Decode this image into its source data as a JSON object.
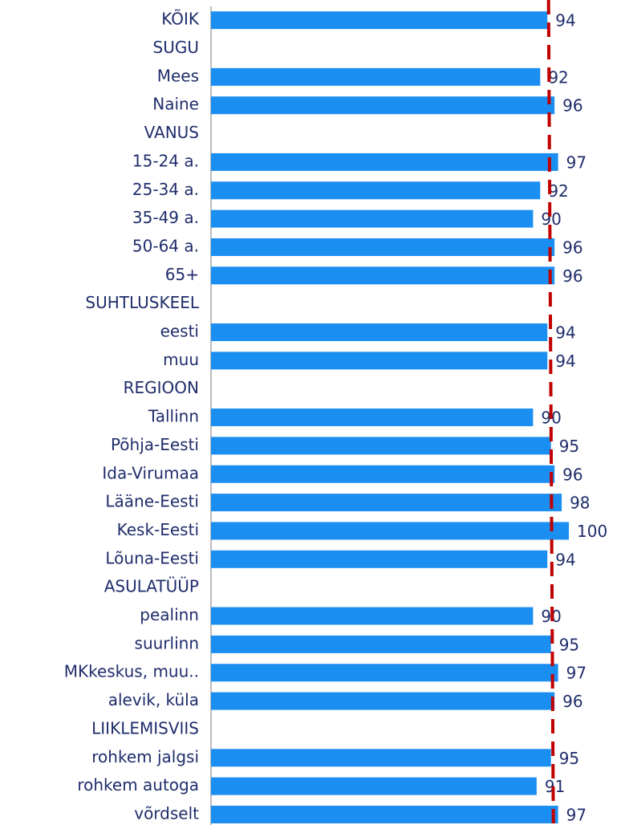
{
  "chart_data": {
    "type": "barh",
    "categories": [
      "KÕIK",
      "SUGU",
      "Mees",
      "Naine",
      "VANUS",
      "15-24 a.",
      "25-34 a.",
      "35-49 a.",
      "50-64 a.",
      "65+",
      "SUHTLUSKEEL",
      "eesti",
      "muu",
      "REGIOON",
      "Tallinn",
      "Põhja-Eesti",
      "Ida-Virumaa",
      "Lääne-Eesti",
      "Kesk-Eesti",
      "Lõuna-Eesti",
      "ASULATÜÜP",
      "pealinn",
      "suurlinn",
      "MKkeskus, muu..",
      "alevik, küla",
      "LIIKLEMISVIIS",
      "rohkem jalgsi",
      "rohkem autoga",
      "võrdselt"
    ],
    "values": [
      94,
      null,
      92,
      96,
      null,
      97,
      92,
      90,
      96,
      96,
      null,
      94,
      94,
      null,
      90,
      95,
      96,
      98,
      100,
      94,
      null,
      90,
      95,
      97,
      96,
      null,
      95,
      91,
      97
    ],
    "color": "#1b8ef2",
    "xlim": [
      0,
      100
    ],
    "reference_value": 95,
    "reference_color": "#c00000"
  }
}
